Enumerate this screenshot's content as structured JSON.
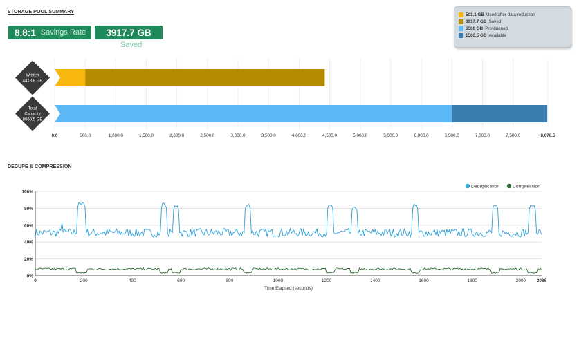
{
  "storage": {
    "title": "STORAGE POOL SUMMARY",
    "ratio": "8.8:1",
    "ratio_label": "Savings Rate",
    "saved_value": "3917.7 GB",
    "saved_label": "Saved"
  },
  "legend": [
    {
      "value": "501.1 GB",
      "label": "Used after data reduction",
      "color": "#f7b70f"
    },
    {
      "value": "3917.7 GB",
      "label": "Saved",
      "color": "#b38a00"
    },
    {
      "value": "6500 GB",
      "label": "Provisioned",
      "color": "#5bb8f5"
    },
    {
      "value": "1560.5 GB",
      "label": "Available",
      "color": "#3a7db0"
    }
  ],
  "dedupe": {
    "title": "DEDUPE & COMPRESSION"
  },
  "chart_data": [
    {
      "type": "bar",
      "orientation": "horizontal",
      "stacked": true,
      "categories": [
        {
          "name": "Written",
          "value": "4418.8 GB"
        },
        {
          "name": "Total Capacity",
          "value": "8060.5 GB"
        }
      ],
      "series": [
        {
          "name": "Used after data reduction",
          "color": "#f7b70f",
          "values": [
            501.1,
            0
          ]
        },
        {
          "name": "Saved",
          "color": "#b38a00",
          "values": [
            3917.7,
            0
          ]
        },
        {
          "name": "Provisioned",
          "color": "#5bb8f5",
          "values": [
            0,
            6500
          ]
        },
        {
          "name": "Available",
          "color": "#3a7db0",
          "values": [
            0,
            1560.5
          ]
        }
      ],
      "xlim": [
        0,
        8070.5
      ],
      "xticks": [
        "0.0",
        "500.0",
        "1,000.0",
        "1,500.0",
        "2,000.0",
        "2,500.0",
        "3,000.0",
        "3,500.0",
        "4,000.0",
        "4,500.0",
        "5,000.0",
        "5,500.0",
        "6,000.0",
        "6,500.0",
        "7,000.0",
        "7,500.0",
        "8,070.5"
      ],
      "xtick_values": [
        0,
        500,
        1000,
        1500,
        2000,
        2500,
        3000,
        3500,
        4000,
        4500,
        5000,
        5500,
        6000,
        6500,
        7000,
        7500,
        8070.5
      ],
      "grid": true
    },
    {
      "type": "line",
      "xlabel": "Time Elapsed (seconds)",
      "xlim": [
        0,
        2086
      ],
      "ylim": [
        0,
        100
      ],
      "xticks": [
        0,
        200,
        400,
        600,
        800,
        1000,
        1200,
        1400,
        1600,
        1800,
        2000,
        2086
      ],
      "yticks": [
        "0%",
        "20%",
        "40%",
        "60%",
        "80%",
        "100%"
      ],
      "ytick_values": [
        0,
        20,
        40,
        60,
        80,
        100
      ],
      "legend_position": "top-right",
      "grid": true,
      "series": [
        {
          "name": "Deduplication",
          "color": "#2a9fd6",
          "baseline": 51,
          "noise": 5,
          "peaks": [
            [
              170,
              210,
              88
            ],
            [
              515,
              545,
              87
            ],
            [
              565,
              595,
              84
            ],
            [
              860,
              890,
              86
            ],
            [
              1200,
              1230,
              87
            ],
            [
              1300,
              1330,
              83
            ],
            [
              1550,
              1580,
              86
            ],
            [
              1880,
              1910,
              86
            ],
            [
              2030,
              2065,
              84
            ]
          ],
          "spikes": [
            [
              110,
              63
            ]
          ]
        },
        {
          "name": "Compression",
          "color": "#2e6b2e",
          "baseline": 8,
          "noise": 1.3,
          "dips": [
            [
              170,
              210,
              3
            ],
            [
              515,
              545,
              3
            ],
            [
              565,
              595,
              3
            ],
            [
              860,
              890,
              3
            ],
            [
              1200,
              1230,
              3
            ],
            [
              1300,
              1330,
              3
            ],
            [
              1550,
              1580,
              3
            ],
            [
              1880,
              1910,
              3
            ],
            [
              2030,
              2065,
              3
            ]
          ]
        }
      ]
    }
  ]
}
